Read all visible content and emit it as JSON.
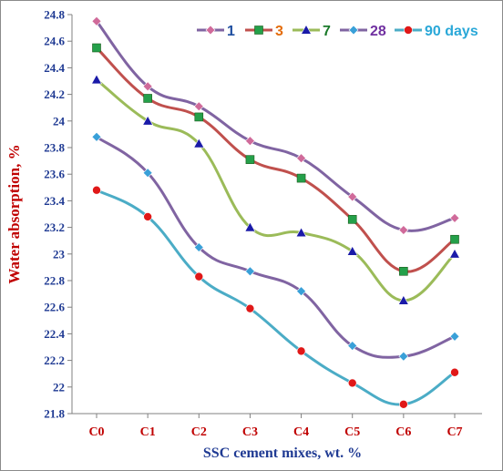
{
  "chart_data": {
    "type": "line",
    "xlabel": "SSC cement mixes, wt. %",
    "ylabel": "Water absorption, %",
    "categories": [
      "C0",
      "C1",
      "C2",
      "C3",
      "C4",
      "C5",
      "C6",
      "C7"
    ],
    "ylim": [
      21.8,
      24.8
    ],
    "yticks": [
      "24.8",
      "24.6",
      "24.4",
      "24.2",
      "24",
      "23.8",
      "23.6",
      "23.4",
      "23.2",
      "23",
      "22.8",
      "22.6",
      "22.4",
      "22.2",
      "22",
      "21.8"
    ],
    "grid": false,
    "legend_position": "top",
    "series": [
      {
        "name": "1",
        "color": "#8064a2",
        "marker": "diamond",
        "marker_color": "#d06a9a",
        "legend_color": "#1f4fa0",
        "values": [
          24.75,
          24.26,
          24.11,
          23.85,
          23.72,
          23.43,
          23.18,
          23.27
        ]
      },
      {
        "name": "3",
        "color": "#c0504d",
        "marker": "square",
        "marker_color": "#24a04a",
        "legend_color": "#e46c0a",
        "values": [
          24.55,
          24.17,
          24.03,
          23.71,
          23.57,
          23.26,
          22.87,
          23.11
        ]
      },
      {
        "name": "7",
        "color": "#9bbb59",
        "marker": "triangle",
        "marker_color": "#1a1aa8",
        "legend_color": "#1a7a2a",
        "values": [
          24.31,
          24.0,
          23.83,
          23.2,
          23.16,
          23.02,
          22.65,
          23.0
        ]
      },
      {
        "name": "28",
        "color": "#8064a2",
        "marker": "diamond",
        "marker_color": "#39a0d8",
        "legend_color": "#7030a0",
        "values": [
          23.88,
          23.61,
          23.05,
          22.87,
          22.72,
          22.31,
          22.23,
          22.38
        ]
      },
      {
        "name": "90 days",
        "color": "#4bacc6",
        "marker": "circle",
        "marker_color": "#e01818",
        "legend_color": "#2aa8d8",
        "values": [
          23.48,
          23.28,
          22.83,
          22.59,
          22.27,
          22.03,
          21.87,
          22.11
        ]
      }
    ]
  }
}
